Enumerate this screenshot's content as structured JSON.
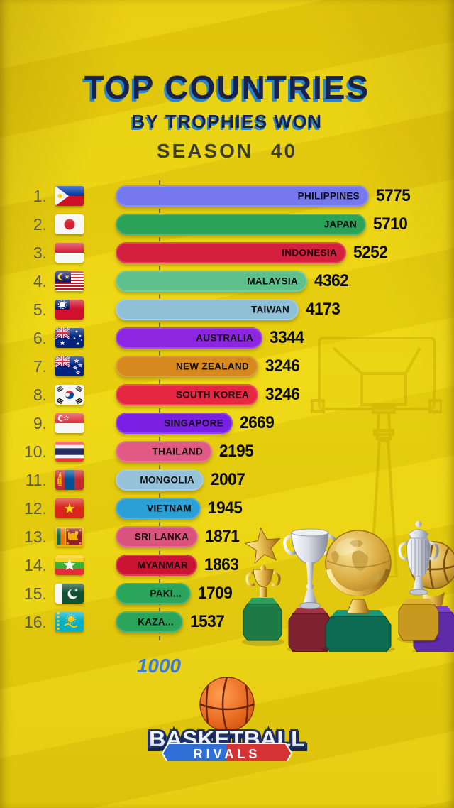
{
  "title": {
    "line1": "TOP COUNTRIES",
    "line2": "BY TROPHIES WON",
    "season": "SEASON 40"
  },
  "chart_data": {
    "type": "bar",
    "orientation": "horizontal",
    "title": "TOP COUNTRIES BY TROPHIES WON",
    "subtitle": "SEASON 40",
    "axis": {
      "gridline_value": 1000,
      "gridline_label": "1000"
    },
    "rows": [
      {
        "rank": "1.",
        "label": "PHILIPPINES",
        "value": 5775,
        "bar_color": "#7678ee",
        "flag_icon": "philippines-flag"
      },
      {
        "rank": "2.",
        "label": "JAPAN",
        "value": 5710,
        "bar_color": "#2aa257",
        "flag_icon": "japan-flag"
      },
      {
        "rank": "3.",
        "label": "INDONESIA",
        "value": 5252,
        "bar_color": "#d41f3f",
        "flag_icon": "indonesia-flag"
      },
      {
        "rank": "4.",
        "label": "MALAYSIA",
        "value": 4362,
        "bar_color": "#5ec08c",
        "flag_icon": "malaysia-flag"
      },
      {
        "rank": "5.",
        "label": "TAIWAN",
        "value": 4173,
        "bar_color": "#90c0d8",
        "flag_icon": "taiwan-flag"
      },
      {
        "rank": "6.",
        "label": "AUSTRALIA",
        "value": 3344,
        "bar_color": "#8d26e0",
        "flag_icon": "australia-flag"
      },
      {
        "rank": "7.",
        "label": "NEW ZEALAND",
        "value": 3246,
        "bar_color": "#d8891e",
        "flag_icon": "new-zealand-flag"
      },
      {
        "rank": "8.",
        "label": "SOUTH KOREA",
        "value": 3246,
        "bar_color": "#e62742",
        "flag_icon": "south-korea-flag"
      },
      {
        "rank": "9.",
        "label": "SINGAPORE",
        "value": 2669,
        "bar_color": "#7a1fe4",
        "flag_icon": "singapore-flag"
      },
      {
        "rank": "10.",
        "label": "THAILAND",
        "value": 2195,
        "bar_color": "#e05a85",
        "flag_icon": "thailand-flag"
      },
      {
        "rank": "11.",
        "label": "MONGOLIA",
        "value": 2007,
        "bar_color": "#96c3da",
        "flag_icon": "mongolia-flag"
      },
      {
        "rank": "12.",
        "label": "VIETNAM",
        "value": 1945,
        "bar_color": "#2aa0d6",
        "flag_icon": "vietnam-flag"
      },
      {
        "rank": "13.",
        "label": "SRI LANKA",
        "value": 1871,
        "bar_color": "#d9537d",
        "flag_icon": "sri-lanka-flag"
      },
      {
        "rank": "14.",
        "label": "MYANMAR",
        "value": 1863,
        "bar_color": "#cb1434",
        "flag_icon": "myanmar-flag"
      },
      {
        "rank": "15.",
        "label": "PAKI...",
        "value": 1709,
        "bar_color": "#2ba55c",
        "flag_icon": "pakistan-flag"
      },
      {
        "rank": "16.",
        "label": "KAZA...",
        "value": 1537,
        "bar_color": "#2ba55c",
        "flag_icon": "kazakhstan-flag"
      }
    ]
  },
  "logo": {
    "line1": "BASKETBALL",
    "line2": "RIVALS"
  },
  "decor": {
    "watermark_icon": "basketball-hoop-icon",
    "trophy_icons": [
      "star-trophy-icon",
      "silver-cup-trophy-icon",
      "globe-trophy-icon",
      "urn-trophy-icon",
      "basketball-trophy-icon"
    ]
  }
}
